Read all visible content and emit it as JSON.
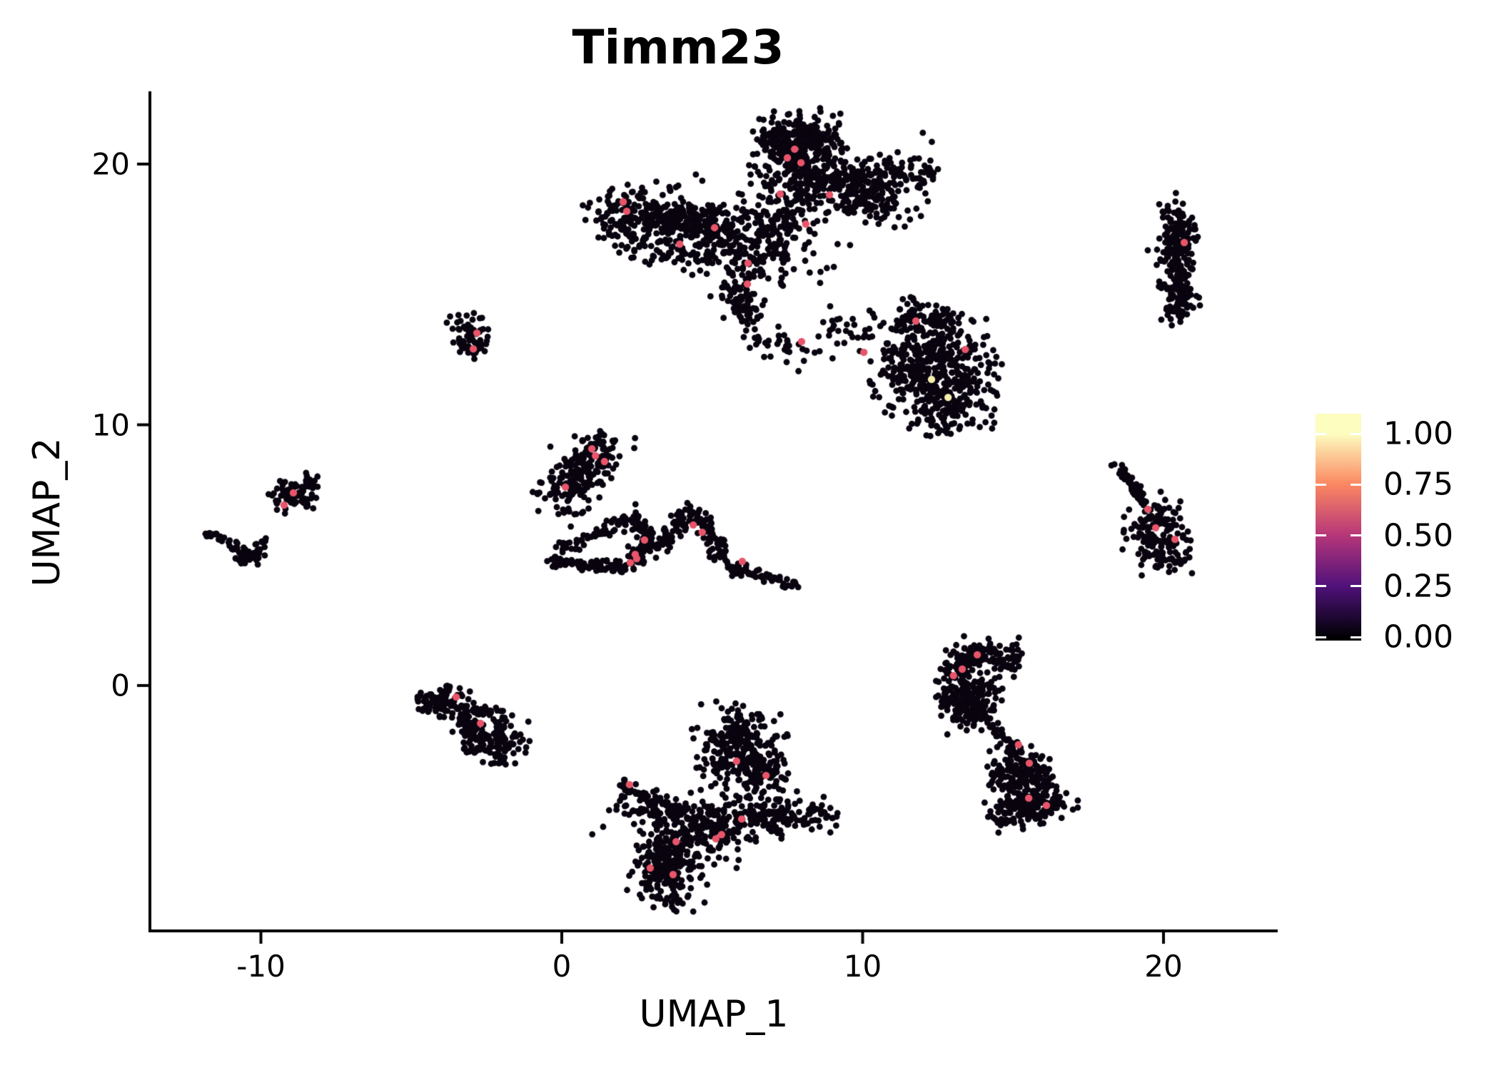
{
  "chart_data": {
    "type": "scatter",
    "title": "Timm23",
    "xlabel": "UMAP_1",
    "ylabel": "UMAP_2",
    "xlim": [
      -13.7,
      23.8
    ],
    "ylim": [
      -9.4,
      22.7
    ],
    "grid": false,
    "legend_position": "right",
    "point_color_scale": "magma",
    "x_ticks": [
      {
        "v": -10,
        "label": "-10"
      },
      {
        "v": 0,
        "label": "0"
      },
      {
        "v": 10,
        "label": "10"
      },
      {
        "v": 20,
        "label": "20"
      }
    ],
    "y_ticks": [
      {
        "v": 0,
        "label": "0"
      },
      {
        "v": 10,
        "label": "10"
      },
      {
        "v": 20,
        "label": "20"
      }
    ],
    "clusters": [
      {
        "k": "s",
        "pts": [
          [
            1.6,
            17.9
          ],
          [
            3.1,
            18.0
          ],
          [
            4.6,
            17.6
          ],
          [
            5.9,
            17.1
          ]
        ],
        "s": 0.62,
        "n": 470
      },
      {
        "k": "s",
        "pts": [
          [
            2.2,
            16.6
          ],
          [
            4.0,
            16.4
          ],
          [
            5.5,
            16.3
          ]
        ],
        "s": 0.25,
        "n": 40
      },
      {
        "k": "s",
        "pts": [
          [
            6.3,
            15.9
          ],
          [
            6.9,
            16.9
          ],
          [
            7.4,
            18.2
          ],
          [
            7.8,
            19.5
          ]
        ],
        "s": 0.42,
        "n": 170
      },
      {
        "k": "b",
        "c": [
          7.9,
          20.4
        ],
        "sd": [
          0.85,
          0.8
        ],
        "n": 300,
        "cl": 2.2
      },
      {
        "k": "s",
        "pts": [
          [
            7.0,
            20.8
          ],
          [
            8.0,
            21.3
          ],
          [
            8.8,
            20.8
          ]
        ],
        "s": 0.3,
        "n": 60
      },
      {
        "k": "s",
        "pts": [
          [
            8.5,
            19.3
          ],
          [
            9.5,
            19.1
          ],
          [
            10.5,
            18.8
          ],
          [
            11.2,
            18.5
          ]
        ],
        "s": 0.5,
        "n": 230
      },
      {
        "k": "b",
        "c": [
          10.6,
          19.6
        ],
        "sd": [
          0.5,
          0.4
        ],
        "n": 60,
        "cl": 2.2
      },
      {
        "k": "s",
        "pts": [
          [
            11.7,
            19.9
          ],
          [
            12.3,
            19.4
          ]
        ],
        "s": 0.28,
        "n": 30
      },
      {
        "k": "b",
        "c": [
          7.5,
          17.3
        ],
        "sd": [
          1.2,
          1.1
        ],
        "n": 80,
        "cl": 2.4
      },
      {
        "k": "s",
        "pts": [
          [
            5.7,
            15.4
          ],
          [
            6.0,
            14.7
          ],
          [
            6.2,
            14.0
          ]
        ],
        "s": 0.28,
        "n": 80
      },
      {
        "k": "s",
        "pts": [
          [
            6.4,
            13.5
          ],
          [
            7.3,
            13.0
          ],
          [
            8.3,
            12.7
          ]
        ],
        "s": 0.3,
        "n": 35
      },
      {
        "k": "s",
        "pts": [
          [
            8.8,
            13.9
          ],
          [
            9.8,
            13.4
          ],
          [
            10.6,
            13.8
          ]
        ],
        "s": 0.3,
        "n": 30
      },
      {
        "k": "b",
        "c": [
          12.4,
          12.2
        ],
        "sd": [
          1.0,
          0.95
        ],
        "n": 400,
        "cl": 2.3
      },
      {
        "k": "b",
        "c": [
          12.8,
          10.7
        ],
        "sd": [
          0.75,
          0.55
        ],
        "n": 130,
        "cl": 2.2
      },
      {
        "k": "s",
        "pts": [
          [
            10.9,
            14.0
          ],
          [
            11.9,
            14.2
          ],
          [
            12.9,
            13.8
          ]
        ],
        "s": 0.35,
        "n": 80
      },
      {
        "k": "s",
        "pts": [
          [
            20.3,
            18.3
          ],
          [
            20.6,
            17.5
          ],
          [
            20.3,
            16.6
          ],
          [
            20.55,
            15.7
          ],
          [
            20.6,
            14.9
          ],
          [
            20.4,
            14.2
          ]
        ],
        "s": 0.26,
        "n": 290
      },
      {
        "k": "s",
        "pts": [
          [
            18.3,
            8.55
          ],
          [
            18.85,
            7.85
          ],
          [
            19.4,
            7.0
          ]
        ],
        "s": 0.1,
        "n": 50
      },
      {
        "k": "b",
        "c": [
          19.8,
          5.7
        ],
        "sd": [
          0.55,
          0.8
        ],
        "n": 160,
        "cl": 2.2
      },
      {
        "k": "b",
        "c": [
          -3.1,
          13.5
        ],
        "sd": [
          0.33,
          0.38
        ],
        "n": 55,
        "cl": 2.2
      },
      {
        "k": "b",
        "c": [
          -2.8,
          12.95
        ],
        "sd": [
          0.2,
          0.22
        ],
        "n": 18,
        "cl": 2.2
      },
      {
        "k": "s",
        "pts": [
          [
            -0.1,
            7.3
          ],
          [
            0.5,
            8.0
          ],
          [
            1.0,
            8.7
          ],
          [
            1.35,
            9.2
          ]
        ],
        "s": 0.4,
        "n": 210
      },
      {
        "k": "s",
        "pts": [
          [
            -0.2,
            6.5
          ],
          [
            0.6,
            6.7
          ]
        ],
        "s": 0.15,
        "n": 7
      },
      {
        "k": "s",
        "pts": [
          [
            -0.3,
            4.75
          ],
          [
            0.9,
            4.62
          ],
          [
            2.15,
            4.58
          ]
        ],
        "s": 0.13,
        "n": 85
      },
      {
        "k": "s",
        "pts": [
          [
            -0.2,
            5.15
          ],
          [
            0.7,
            5.55
          ],
          [
            1.55,
            5.95
          ]
        ],
        "s": 0.16,
        "n": 40
      },
      {
        "k": "s",
        "pts": [
          [
            1.7,
            6.05
          ],
          [
            2.35,
            6.3
          ],
          [
            2.95,
            5.95
          ]
        ],
        "s": 0.18,
        "n": 45
      },
      {
        "k": "s",
        "pts": [
          [
            2.85,
            5.75
          ],
          [
            2.6,
            5.1
          ],
          [
            2.45,
            4.7
          ]
        ],
        "s": 0.17,
        "n": 55
      },
      {
        "k": "s",
        "pts": [
          [
            3.25,
            5.3
          ],
          [
            3.85,
            6.1
          ],
          [
            4.4,
            6.85
          ]
        ],
        "s": 0.18,
        "n": 65
      },
      {
        "k": "s",
        "pts": [
          [
            4.6,
            6.5
          ],
          [
            5.0,
            5.6
          ],
          [
            5.35,
            4.85
          ]
        ],
        "s": 0.18,
        "n": 65
      },
      {
        "k": "s",
        "pts": [
          [
            5.5,
            4.55
          ],
          [
            6.4,
            4.25
          ],
          [
            7.3,
            4.0
          ],
          [
            7.75,
            3.88
          ]
        ],
        "s": 0.1,
        "n": 60
      },
      {
        "k": "b",
        "c": [
          -8.85,
          7.3
        ],
        "sd": [
          0.42,
          0.33
        ],
        "n": 70,
        "cl": 2.2
      },
      {
        "k": "b",
        "c": [
          -8.4,
          7.9
        ],
        "sd": [
          0.17,
          0.15
        ],
        "n": 10,
        "cl": 2.2
      },
      {
        "k": "s",
        "pts": [
          [
            -11.85,
            5.85
          ],
          [
            -11.2,
            5.5
          ],
          [
            -10.65,
            5.2
          ]
        ],
        "s": 0.09,
        "n": 28
      },
      {
        "k": "b",
        "c": [
          -10.4,
          4.95
        ],
        "sd": [
          0.3,
          0.2
        ],
        "n": 40,
        "cl": 2.2
      },
      {
        "k": "s",
        "pts": [
          [
            -10.05,
            5.25
          ],
          [
            -9.85,
            5.55
          ]
        ],
        "s": 0.08,
        "n": 10
      },
      {
        "k": "b",
        "c": [
          -4.0,
          -0.6
        ],
        "sd": [
          0.5,
          0.35
        ],
        "n": 90,
        "cl": 2.2
      },
      {
        "k": "s",
        "pts": [
          [
            -3.2,
            -0.9
          ],
          [
            -2.5,
            -1.05
          ],
          [
            -1.85,
            -1.2
          ]
        ],
        "s": 0.18,
        "n": 45
      },
      {
        "k": "b",
        "c": [
          -2.25,
          -2.25
        ],
        "sd": [
          0.55,
          0.42
        ],
        "n": 130,
        "cl": 2.2
      },
      {
        "k": "s",
        "pts": [
          [
            -3.3,
            -1.5
          ],
          [
            -2.8,
            -1.85
          ]
        ],
        "s": 0.2,
        "n": 25
      },
      {
        "k": "b",
        "c": [
          5.9,
          -2.5
        ],
        "sd": [
          0.7,
          0.85
        ],
        "n": 280,
        "cl": 2.3
      },
      {
        "k": "b",
        "c": [
          6.75,
          -3.3
        ],
        "sd": [
          0.4,
          0.4
        ],
        "n": 60,
        "cl": 2.2
      },
      {
        "k": "s",
        "pts": [
          [
            1.95,
            -3.7
          ],
          [
            2.6,
            -4.15
          ],
          [
            3.3,
            -4.65
          ]
        ],
        "s": 0.16,
        "n": 35
      },
      {
        "k": "s",
        "pts": [
          [
            2.0,
            -4.7
          ],
          [
            3.5,
            -5.05
          ],
          [
            5.0,
            -5.25
          ],
          [
            6.5,
            -5.05
          ],
          [
            8.05,
            -5.0
          ]
        ],
        "s": 0.45,
        "n": 340
      },
      {
        "k": "b",
        "c": [
          3.5,
          -7.0
        ],
        "sd": [
          0.58,
          0.75
        ],
        "n": 240,
        "cl": 2.3
      },
      {
        "k": "b",
        "c": [
          4.6,
          -6.0
        ],
        "sd": [
          0.75,
          0.45
        ],
        "n": 60,
        "cl": 2.3
      },
      {
        "k": "s",
        "pts": [
          [
            8.3,
            -4.85
          ],
          [
            8.95,
            -5.1
          ]
        ],
        "s": 0.2,
        "n": 18
      },
      {
        "k": "s",
        "pts": [
          [
            12.95,
            0.5
          ],
          [
            13.5,
            1.1
          ],
          [
            14.3,
            1.25
          ],
          [
            15.05,
            0.85
          ]
        ],
        "s": 0.3,
        "n": 150
      },
      {
        "k": "b",
        "c": [
          13.55,
          -0.55
        ],
        "sd": [
          0.5,
          0.58
        ],
        "n": 190,
        "cl": 2.3
      },
      {
        "k": "s",
        "pts": [
          [
            14.3,
            -1.6
          ],
          [
            14.75,
            -2.05
          ],
          [
            15.05,
            -2.35
          ]
        ],
        "s": 0.15,
        "n": 28
      },
      {
        "k": "b",
        "c": [
          15.25,
          -3.3
        ],
        "sd": [
          0.55,
          0.5
        ],
        "n": 150,
        "cl": 2.3
      },
      {
        "k": "b",
        "c": [
          15.6,
          -4.55
        ],
        "sd": [
          0.7,
          0.45
        ],
        "n": 170,
        "cl": 2.3
      },
      {
        "k": "s",
        "pts": [
          [
            14.3,
            -4.9
          ],
          [
            14.9,
            -5.3
          ]
        ],
        "s": 0.18,
        "n": 20
      }
    ],
    "highlight_points": [
      [
        7.74,
        20.57
      ],
      [
        7.5,
        20.24
      ],
      [
        7.95,
        20.05
      ],
      [
        2.04,
        18.55
      ],
      [
        2.16,
        18.19
      ],
      [
        8.9,
        18.82
      ],
      [
        7.26,
        18.85
      ],
      [
        5.08,
        17.56
      ],
      [
        8.11,
        17.7
      ],
      [
        3.92,
        16.93
      ],
      [
        6.19,
        16.2
      ],
      [
        6.17,
        15.4
      ],
      [
        7.97,
        13.19
      ],
      [
        11.77,
        13.98
      ],
      [
        10.04,
        12.78
      ],
      [
        13.41,
        12.89
      ],
      [
        12.29,
        11.74,
        1.0
      ],
      [
        12.84,
        11.05,
        0.97
      ],
      [
        20.69,
        16.99
      ],
      [
        19.48,
        6.76
      ],
      [
        19.74,
        6.05
      ],
      [
        20.38,
        5.61
      ],
      [
        -2.82,
        13.52
      ],
      [
        -2.94,
        12.91
      ],
      [
        1.0,
        9.08
      ],
      [
        1.12,
        8.81
      ],
      [
        1.42,
        8.59
      ],
      [
        0.12,
        7.61
      ],
      [
        2.75,
        5.58
      ],
      [
        2.44,
        5.03
      ],
      [
        2.49,
        4.87
      ],
      [
        2.28,
        4.71
      ],
      [
        4.37,
        6.16
      ],
      [
        4.67,
        5.88
      ],
      [
        6.0,
        4.76
      ],
      [
        -8.92,
        7.39
      ],
      [
        -9.23,
        6.92
      ],
      [
        -3.51,
        -0.44
      ],
      [
        -2.7,
        -1.45
      ],
      [
        5.81,
        -2.9
      ],
      [
        6.79,
        -3.45
      ],
      [
        5.98,
        -5.12
      ],
      [
        5.31,
        -5.72
      ],
      [
        5.12,
        -5.88
      ],
      [
        3.8,
        -5.99
      ],
      [
        2.94,
        -7.0
      ],
      [
        3.7,
        -7.25
      ],
      [
        2.25,
        -3.8
      ],
      [
        13.81,
        1.18
      ],
      [
        13.31,
        0.63
      ],
      [
        13.02,
        0.38
      ],
      [
        15.18,
        -2.27
      ],
      [
        15.54,
        -2.98
      ],
      [
        15.52,
        -4.32
      ],
      [
        16.11,
        -4.6
      ]
    ],
    "stray_points": [
      [
        -9.2,
        6.6
      ],
      [
        19.6,
        6.5
      ],
      [
        2.45,
        6.95
      ],
      [
        6.25,
        12.95
      ],
      [
        9.0,
        12.55
      ],
      [
        12.0,
        21.2
      ],
      [
        12.3,
        20.85
      ],
      [
        0.3,
        6.1
      ],
      [
        11.3,
        12.9
      ]
    ]
  },
  "legend": {
    "ticks": [
      {
        "v": 1.0,
        "label": "1.00"
      },
      {
        "v": 0.75,
        "label": "0.75"
      },
      {
        "v": 0.5,
        "label": "0.50"
      },
      {
        "v": 0.25,
        "label": "0.25"
      },
      {
        "v": 0.0,
        "label": "0.00"
      }
    ],
    "gradient": [
      {
        "p": 0.0,
        "c": "#000004"
      },
      {
        "p": 0.016,
        "c": "#000004"
      },
      {
        "p": 0.24,
        "c": "#50127B"
      },
      {
        "p": 0.464,
        "c": "#B63679"
      },
      {
        "p": 0.688,
        "c": "#FB8761"
      },
      {
        "p": 0.912,
        "c": "#FCFDBF"
      },
      {
        "p": 1.0,
        "c": "#FCFDBF"
      }
    ]
  },
  "colors": {
    "background": "#FFFFFF",
    "axis": "#000000",
    "point_dark": "#09040F",
    "point_mid": "#E8556A",
    "point_high": "#F4EFAE"
  }
}
